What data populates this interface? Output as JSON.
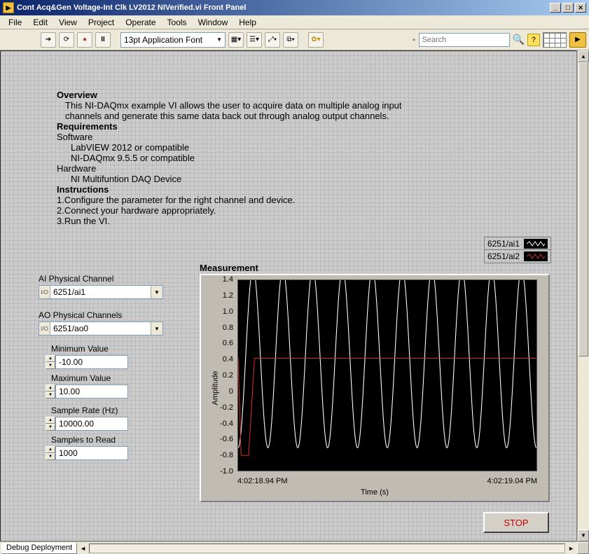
{
  "window": {
    "title": "Cont Acq&Gen Voltage-Int Clk LV2012 NIVerified.vi Front Panel"
  },
  "menu": {
    "items": [
      "File",
      "Edit",
      "View",
      "Project",
      "Operate",
      "Tools",
      "Window",
      "Help"
    ]
  },
  "toolbar": {
    "font_text": "13pt Application Font",
    "search_placeholder": "Search"
  },
  "overview": {
    "heading_overview": "Overview",
    "overview_line1": "This NI-DAQmx example VI allows the user to acquire data on multiple analog input",
    "overview_line2": "channels and generate this same data back out through analog output channels.",
    "heading_req": "Requirements",
    "software_label": "Software",
    "software_line1": "LabVIEW 2012 or compatible",
    "software_line2": "NI-DAQmx 9.5.5 or compatible",
    "hardware_label": "Hardware",
    "hardware_line1": "NI Multifuntion DAQ Device",
    "heading_instr": "Instructions",
    "instr1": "1.Configure the parameter for the right channel and device.",
    "instr2": "2.Connect your hardware appropriately.",
    "instr3": "3.Run the VI."
  },
  "controls": {
    "ai_label": "AI Physical Channel",
    "ai_value": "6251/ai1",
    "ao_label": "AO Physical Channels",
    "ao_value": "6251/ao0",
    "min_label": "Minimum Value",
    "min_value": "-10.00",
    "max_label": "Maximum Value",
    "max_value": "10.00",
    "rate_label": "Sample Rate (Hz)",
    "rate_value": "10000.00",
    "samples_label": "Samples to Read",
    "samples_value": "1000"
  },
  "legend": {
    "items": [
      {
        "label": "6251/ai1",
        "color": "#ffffff"
      },
      {
        "label": "6251/ai2",
        "color": "#cc3020"
      }
    ]
  },
  "graph": {
    "title": "Measurement",
    "ylabel": "Amplitude",
    "xlabel": "Time (s)",
    "xstart": "4:02:18.94 PM",
    "xend": "4:02:19.04 PM",
    "plot": {
      "y_min": -1.0,
      "y_max": 1.4,
      "y_tick_step": 0.2,
      "bg_color": "#000000",
      "series": [
        {
          "name": "ai1",
          "color": "#ffffff",
          "type": "sine",
          "cycles": 10,
          "amp_frac": 0.94,
          "center_frac": 0.41,
          "start_rise": true
        },
        {
          "name": "ai2",
          "color": "#cc3020",
          "type": "flat",
          "level_frac": 0.41,
          "initial_dip": true
        }
      ]
    }
  },
  "stop": {
    "label": "STOP"
  },
  "status": {
    "tab": "Debug Deployment"
  }
}
